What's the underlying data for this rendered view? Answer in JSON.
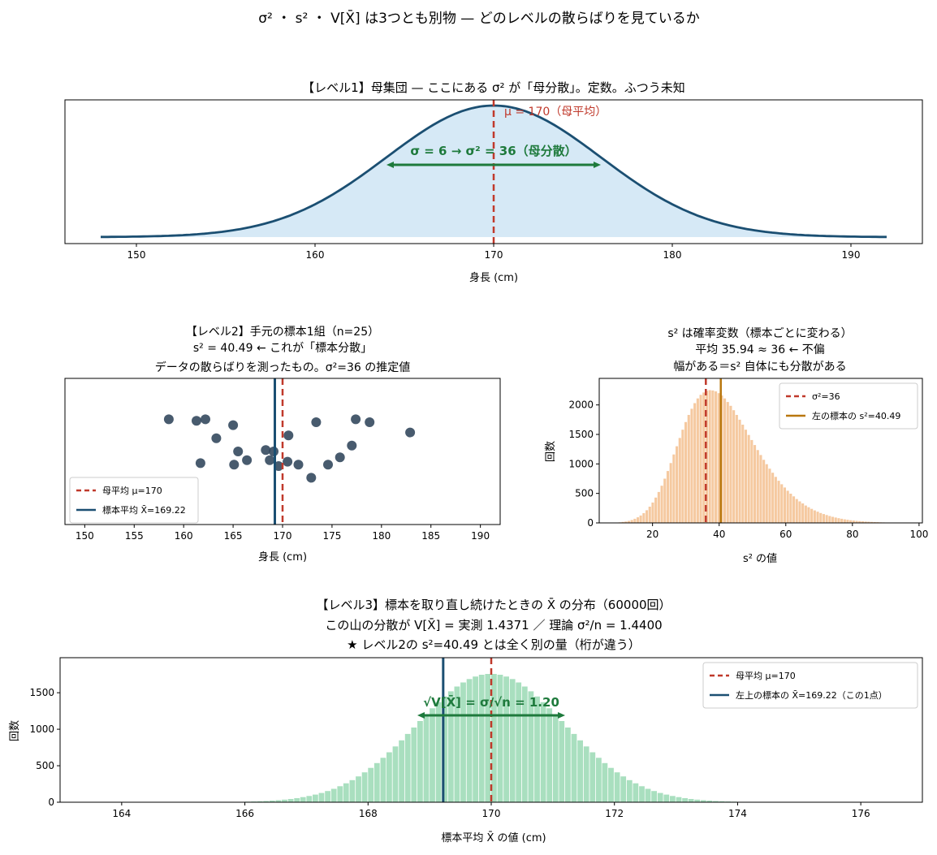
{
  "suptitle": "σ² ・ s² ・ V[X̄] は3つとも別物 — どのレベルの散らばりを見ているか",
  "colors": {
    "curve": "#1b4f72",
    "fill": "#d6e9f6",
    "red": "#c0392b",
    "green": "#1e7a3c",
    "navy": "#1b4f72",
    "dot": "#34495e",
    "orange_hist": "#f5c9a0",
    "orange_line": "#b9770e",
    "green_hist": "#a9dfbf"
  },
  "chart_data": [
    {
      "type": "area",
      "title": "【レベル1】母集団 — ここにある σ² が「母分散」。定数。ふつう未知",
      "xlabel": "身長 (cm)",
      "ylabel": "",
      "xlim": [
        146,
        194
      ],
      "xticks": [
        150,
        160,
        170,
        180,
        190
      ],
      "x_range": [
        148,
        192
      ],
      "mu": 170,
      "sigma": 6,
      "annotations": {
        "mu_label": "μ = 170（母平均）",
        "sigma_label": "σ = 6 → σ² = 36（母分散）"
      },
      "arrow": [
        164,
        176
      ]
    },
    {
      "type": "scatter",
      "title_lines": [
        "【レベル2】手元の標本1組（n=25）",
        "s² = 40.49 ← これが「標本分散」",
        "データの散らばりを測ったもの。σ²=36 の推定値"
      ],
      "xlabel": "身長 (cm)",
      "xlim": [
        148,
        192
      ],
      "xticks": [
        150,
        155,
        160,
        165,
        170,
        175,
        180,
        185,
        190
      ],
      "ylim": [
        0,
        1
      ],
      "points": [
        [
          158.5,
          0.72
        ],
        [
          161.3,
          0.71
        ],
        [
          162.2,
          0.72
        ],
        [
          165.0,
          0.68
        ],
        [
          160.1,
          0.29
        ],
        [
          161.7,
          0.42
        ],
        [
          163.3,
          0.59
        ],
        [
          165.5,
          0.5
        ],
        [
          165.1,
          0.41
        ],
        [
          166.4,
          0.44
        ],
        [
          168.3,
          0.51
        ],
        [
          168.7,
          0.44
        ],
        [
          169.1,
          0.5
        ],
        [
          169.6,
          0.4
        ],
        [
          170.5,
          0.43
        ],
        [
          170.6,
          0.61
        ],
        [
          171.6,
          0.41
        ],
        [
          172.9,
          0.32
        ],
        [
          173.4,
          0.7
        ],
        [
          174.6,
          0.41
        ],
        [
          175.8,
          0.46
        ],
        [
          177.0,
          0.54
        ],
        [
          177.4,
          0.72
        ],
        [
          178.8,
          0.7
        ],
        [
          182.9,
          0.63
        ]
      ],
      "mu": 170,
      "sample_mean": 169.22,
      "legend": [
        "母平均 μ=170",
        "標本平均 X̄=169.22"
      ]
    },
    {
      "type": "bar",
      "title_lines": [
        "s² は確率変数（標本ごとに変わる）",
        "平均 35.94 ≈ 36 ← 不偏",
        "幅がある＝s² 自体にも分散がある"
      ],
      "xlabel": "s² の値",
      "ylabel": "回数",
      "xlim": [
        4,
        101
      ],
      "ylim": [
        0,
        2450
      ],
      "xticks": [
        20,
        40,
        60,
        80,
        100
      ],
      "yticks": [
        0,
        500,
        1000,
        1500,
        2000
      ],
      "bin_start": 8,
      "bin_width": 0.9,
      "values": [
        3,
        5,
        10,
        16,
        24,
        34,
        50,
        70,
        95,
        125,
        165,
        215,
        275,
        345,
        430,
        525,
        630,
        750,
        880,
        1015,
        1160,
        1300,
        1440,
        1580,
        1710,
        1830,
        1935,
        2030,
        2110,
        2170,
        2210,
        2240,
        2250,
        2245,
        2230,
        2200,
        2160,
        2110,
        2050,
        1985,
        1910,
        1830,
        1750,
        1665,
        1580,
        1490,
        1405,
        1320,
        1235,
        1150,
        1070,
        995,
        920,
        850,
        780,
        715,
        655,
        600,
        545,
        495,
        450,
        405,
        365,
        330,
        295,
        265,
        238,
        212,
        190,
        168,
        150,
        133,
        117,
        103,
        91,
        80,
        70,
        61,
        53,
        46,
        40,
        35,
        30,
        26,
        22,
        19,
        16,
        14,
        12,
        10,
        8,
        7,
        6,
        5,
        4,
        3,
        3,
        2,
        2,
        1,
        1
      ],
      "sigma2": 36,
      "sample_s2": 40.49,
      "legend": [
        "σ²=36",
        "左の標本の s²=40.49"
      ]
    },
    {
      "type": "bar",
      "title_lines": [
        "【レベル3】標本を取り直し続けたときの X̄ の分布（60000回）",
        "この山の分散が V[X̄] = 実測 1.4371 ／ 理論 σ²/n = 1.4400",
        "★ レベル2の s²=40.49 とは全く別の量（桁が違う）"
      ],
      "xlabel": "標本平均 X̄ の値 (cm)",
      "ylabel": "回数",
      "xlim": [
        163,
        177
      ],
      "ylim": [
        0,
        1980
      ],
      "xticks": [
        164,
        166,
        168,
        170,
        172,
        174,
        176
      ],
      "yticks": [
        0,
        500,
        1000,
        1500
      ],
      "bin_start": 164.3,
      "bin_width": 0.1,
      "mu": 170,
      "sample_mean": 169.22,
      "se": 1.2,
      "peak": 1760,
      "arrow": [
        168.8,
        171.2
      ],
      "annotation": "√V[X̄] = σ/√n = 1.20",
      "legend": [
        "母平均 μ=170",
        "左上の標本の X̄=169.22（この1点）"
      ]
    }
  ]
}
